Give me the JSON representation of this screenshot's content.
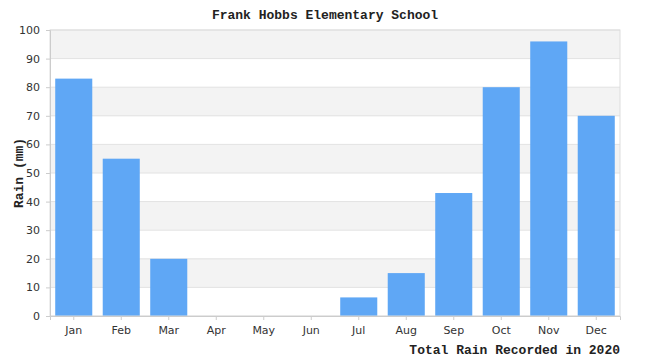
{
  "chart_data": {
    "type": "bar",
    "title": "Frank Hobbs Elementary School",
    "ylabel": "Rain (mm)",
    "xlabel": "Total Rain Recorded in 2020",
    "categories": [
      "Jan",
      "Feb",
      "Mar",
      "Apr",
      "May",
      "Jun",
      "Jul",
      "Aug",
      "Sep",
      "Oct",
      "Nov",
      "Dec"
    ],
    "values": [
      83,
      55,
      20,
      0,
      0,
      0,
      6.5,
      15,
      43,
      80,
      96,
      70
    ],
    "color": "#5fa7f5",
    "ylim": [
      0,
      100
    ],
    "yticks": [
      0,
      10,
      20,
      30,
      40,
      50,
      60,
      70,
      80,
      90,
      100
    ],
    "grid": true
  }
}
